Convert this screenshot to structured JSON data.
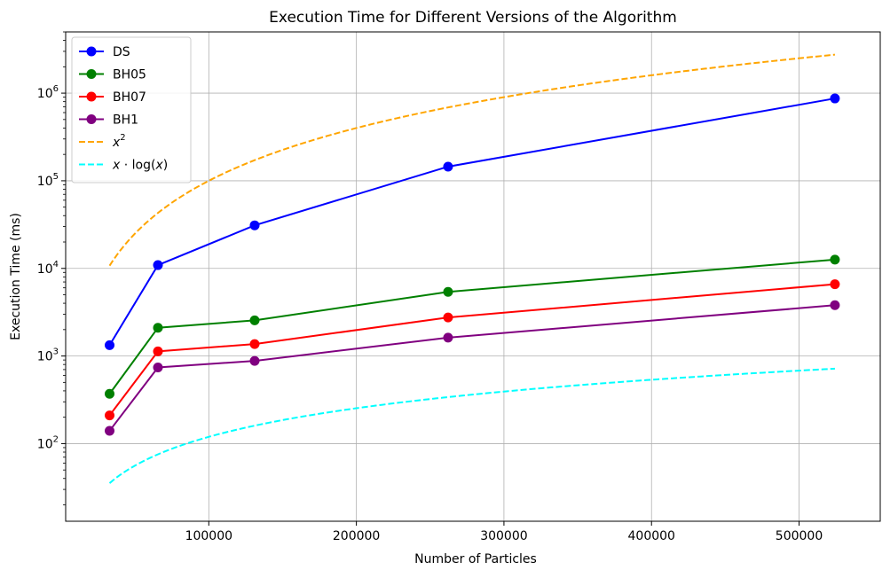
{
  "chart_data": {
    "type": "line",
    "title": "Execution Time for Different Versions of the Algorithm",
    "xlabel": "Number of Particles",
    "ylabel": "Execution Time (ms)",
    "xlim": [
      3000,
      555000
    ],
    "ylim": [
      13,
      5000000
    ],
    "yscale": "log",
    "grid": true,
    "legend_position": "top-left",
    "x_ticks": [
      100000,
      200000,
      300000,
      400000,
      500000
    ],
    "y_ticks": [
      {
        "value": 100,
        "base": "10",
        "exp": "2"
      },
      {
        "value": 1000,
        "base": "10",
        "exp": "3"
      },
      {
        "value": 10000,
        "base": "10",
        "exp": "4"
      },
      {
        "value": 100000,
        "base": "10",
        "exp": "5"
      },
      {
        "value": 1000000,
        "base": "10",
        "exp": "6"
      }
    ],
    "series": [
      {
        "name": "DS",
        "color": "#0000ff",
        "style": "solid",
        "marker": true,
        "x": [
          32768,
          65536,
          131072,
          262144,
          524288
        ],
        "values": [
          1330,
          10900,
          31000,
          145000,
          870000
        ]
      },
      {
        "name": "BH05",
        "color": "#008000",
        "style": "solid",
        "marker": true,
        "x": [
          32768,
          65536,
          131072,
          262144,
          524288
        ],
        "values": [
          370,
          2100,
          2550,
          5400,
          12600
        ]
      },
      {
        "name": "BH07",
        "color": "#ff0000",
        "style": "solid",
        "marker": true,
        "x": [
          32768,
          65536,
          131072,
          262144,
          524288
        ],
        "values": [
          210,
          1130,
          1370,
          2750,
          6600
        ]
      },
      {
        "name": "BH1",
        "color": "#800080",
        "style": "solid",
        "marker": true,
        "x": [
          32768,
          65536,
          131072,
          262144,
          524288
        ],
        "values": [
          140,
          740,
          880,
          1620,
          3800
        ]
      },
      {
        "name": "x^2",
        "color": "#ffa500",
        "style": "dashed",
        "marker": false,
        "function": "x^2",
        "scale": 1e-05,
        "x_range": [
          32768,
          524288
        ]
      },
      {
        "name": "x·log(x)",
        "color": "#00ffff",
        "style": "dashed",
        "marker": false,
        "function": "x*log10(x)",
        "scale": 0.000239,
        "x_range": [
          32768,
          524288
        ]
      }
    ]
  },
  "legend": {
    "items": [
      {
        "label": "DS",
        "color": "#0000ff",
        "style": "solid",
        "marker": true
      },
      {
        "label": "BH05",
        "color": "#008000",
        "style": "solid",
        "marker": true
      },
      {
        "label": "BH07",
        "color": "#ff0000",
        "style": "solid",
        "marker": true
      },
      {
        "label": "BH1",
        "color": "#800080",
        "style": "solid",
        "marker": true
      },
      {
        "label_parts": {
          "base": "x",
          "sup": "2"
        },
        "color": "#ffa500",
        "style": "dashed",
        "marker": false
      },
      {
        "label_parts": {
          "pre": "x · log(",
          "var": "x",
          "post": ")"
        },
        "color": "#00ffff",
        "style": "dashed",
        "marker": false
      }
    ]
  }
}
